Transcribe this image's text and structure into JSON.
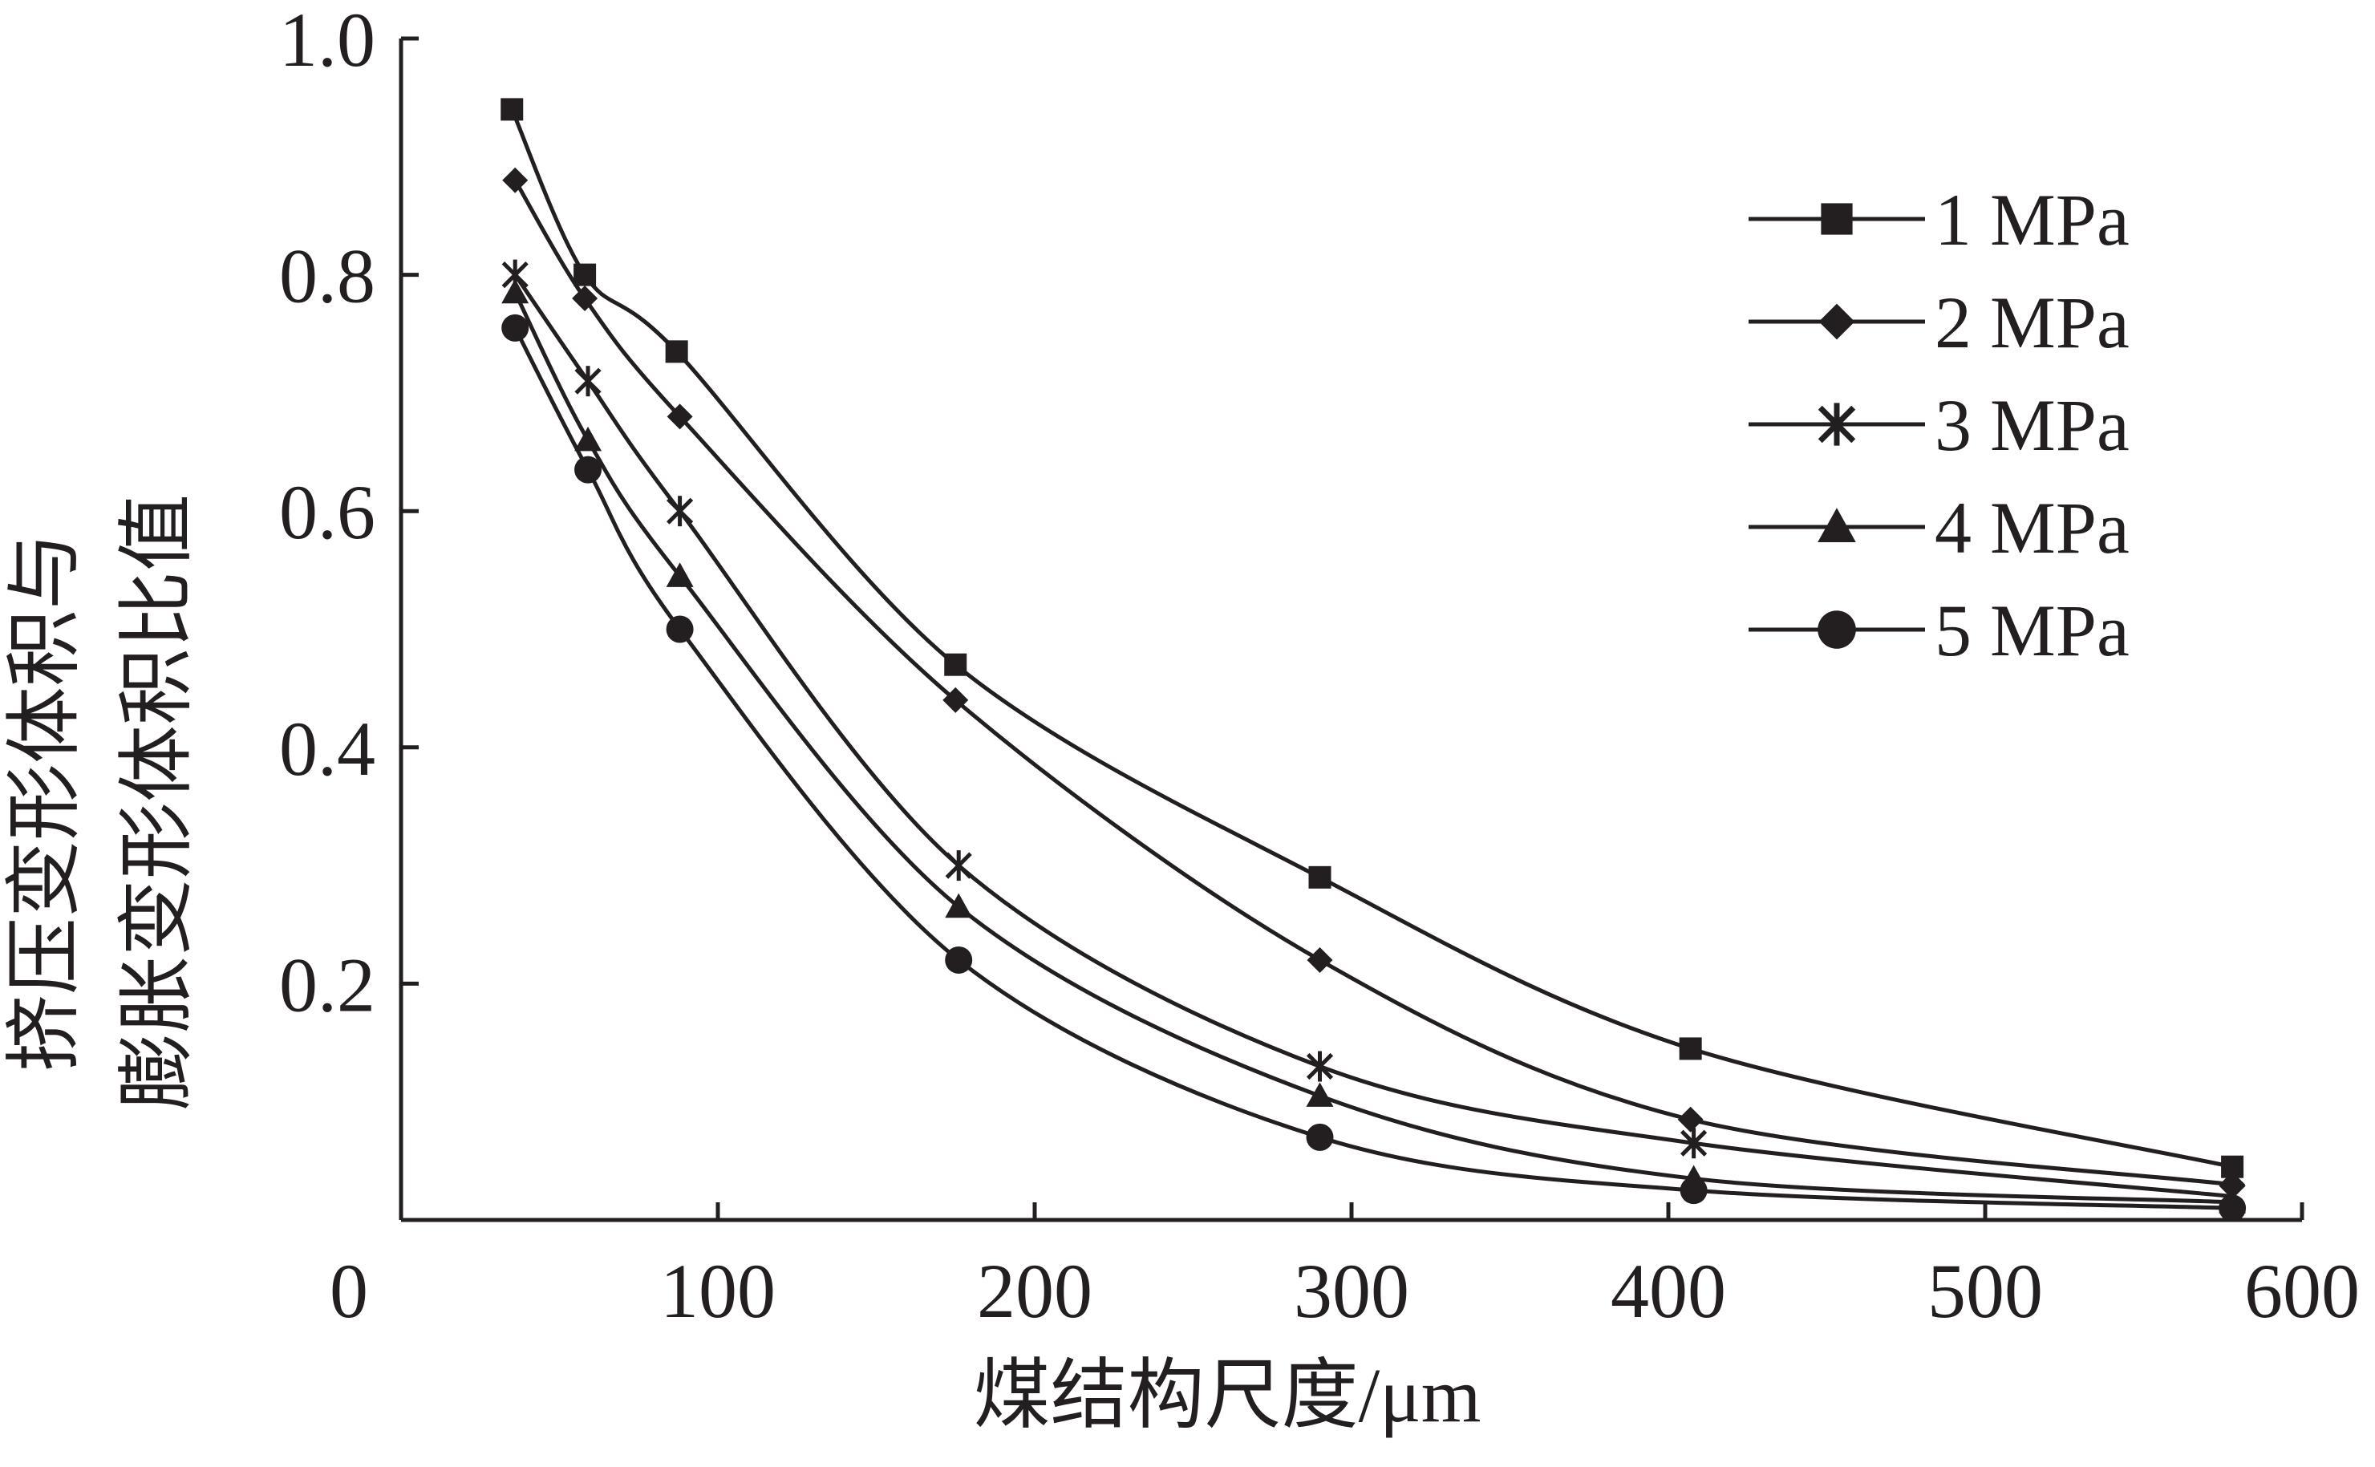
{
  "chart_data": {
    "type": "line",
    "title": "",
    "xlabel": "煤结构尺度/μm",
    "ylabel_lines": [
      "挤压变形体积与",
      "膨胀变形体积比值"
    ],
    "xlim": [
      0,
      600
    ],
    "ylim": [
      0,
      1.0
    ],
    "x_ticks": [
      0,
      100,
      200,
      300,
      400,
      500,
      600
    ],
    "x_tick_labels": [
      "0",
      "100",
      "200",
      "300",
      "400",
      "500",
      "600"
    ],
    "y_ticks": [
      0.2,
      0.4,
      0.6,
      0.8,
      1.0
    ],
    "y_tick_labels": [
      "0.2",
      "0.4",
      "0.6",
      "0.8",
      "1.0"
    ],
    "grid": false,
    "legend_position": "top-right",
    "line_color": "#231f20",
    "series": [
      {
        "name": "1 MPa",
        "marker": "square",
        "x": [
          35,
          58,
          87,
          175,
          290,
          407,
          578
        ],
        "y": [
          0.94,
          0.8,
          0.735,
          0.47,
          0.29,
          0.145,
          0.045
        ]
      },
      {
        "name": "2 MPa",
        "marker": "diamond",
        "x": [
          36,
          58,
          88,
          175,
          290,
          407,
          578
        ],
        "y": [
          0.88,
          0.78,
          0.68,
          0.44,
          0.22,
          0.085,
          0.03
        ]
      },
      {
        "name": "3 MPa",
        "marker": "asterisk",
        "x": [
          36,
          59,
          88,
          176,
          290,
          408,
          578
        ],
        "y": [
          0.8,
          0.71,
          0.6,
          0.3,
          0.13,
          0.065,
          0.02
        ]
      },
      {
        "name": "4 MPa",
        "marker": "triangle",
        "x": [
          36,
          59,
          88,
          176,
          290,
          408,
          578
        ],
        "y": [
          0.785,
          0.66,
          0.545,
          0.265,
          0.105,
          0.035,
          0.015
        ]
      },
      {
        "name": "5 MPa",
        "marker": "circle",
        "x": [
          36,
          59,
          88,
          176,
          290,
          408,
          578
        ],
        "y": [
          0.755,
          0.635,
          0.5,
          0.22,
          0.07,
          0.025,
          0.01
        ]
      }
    ]
  }
}
